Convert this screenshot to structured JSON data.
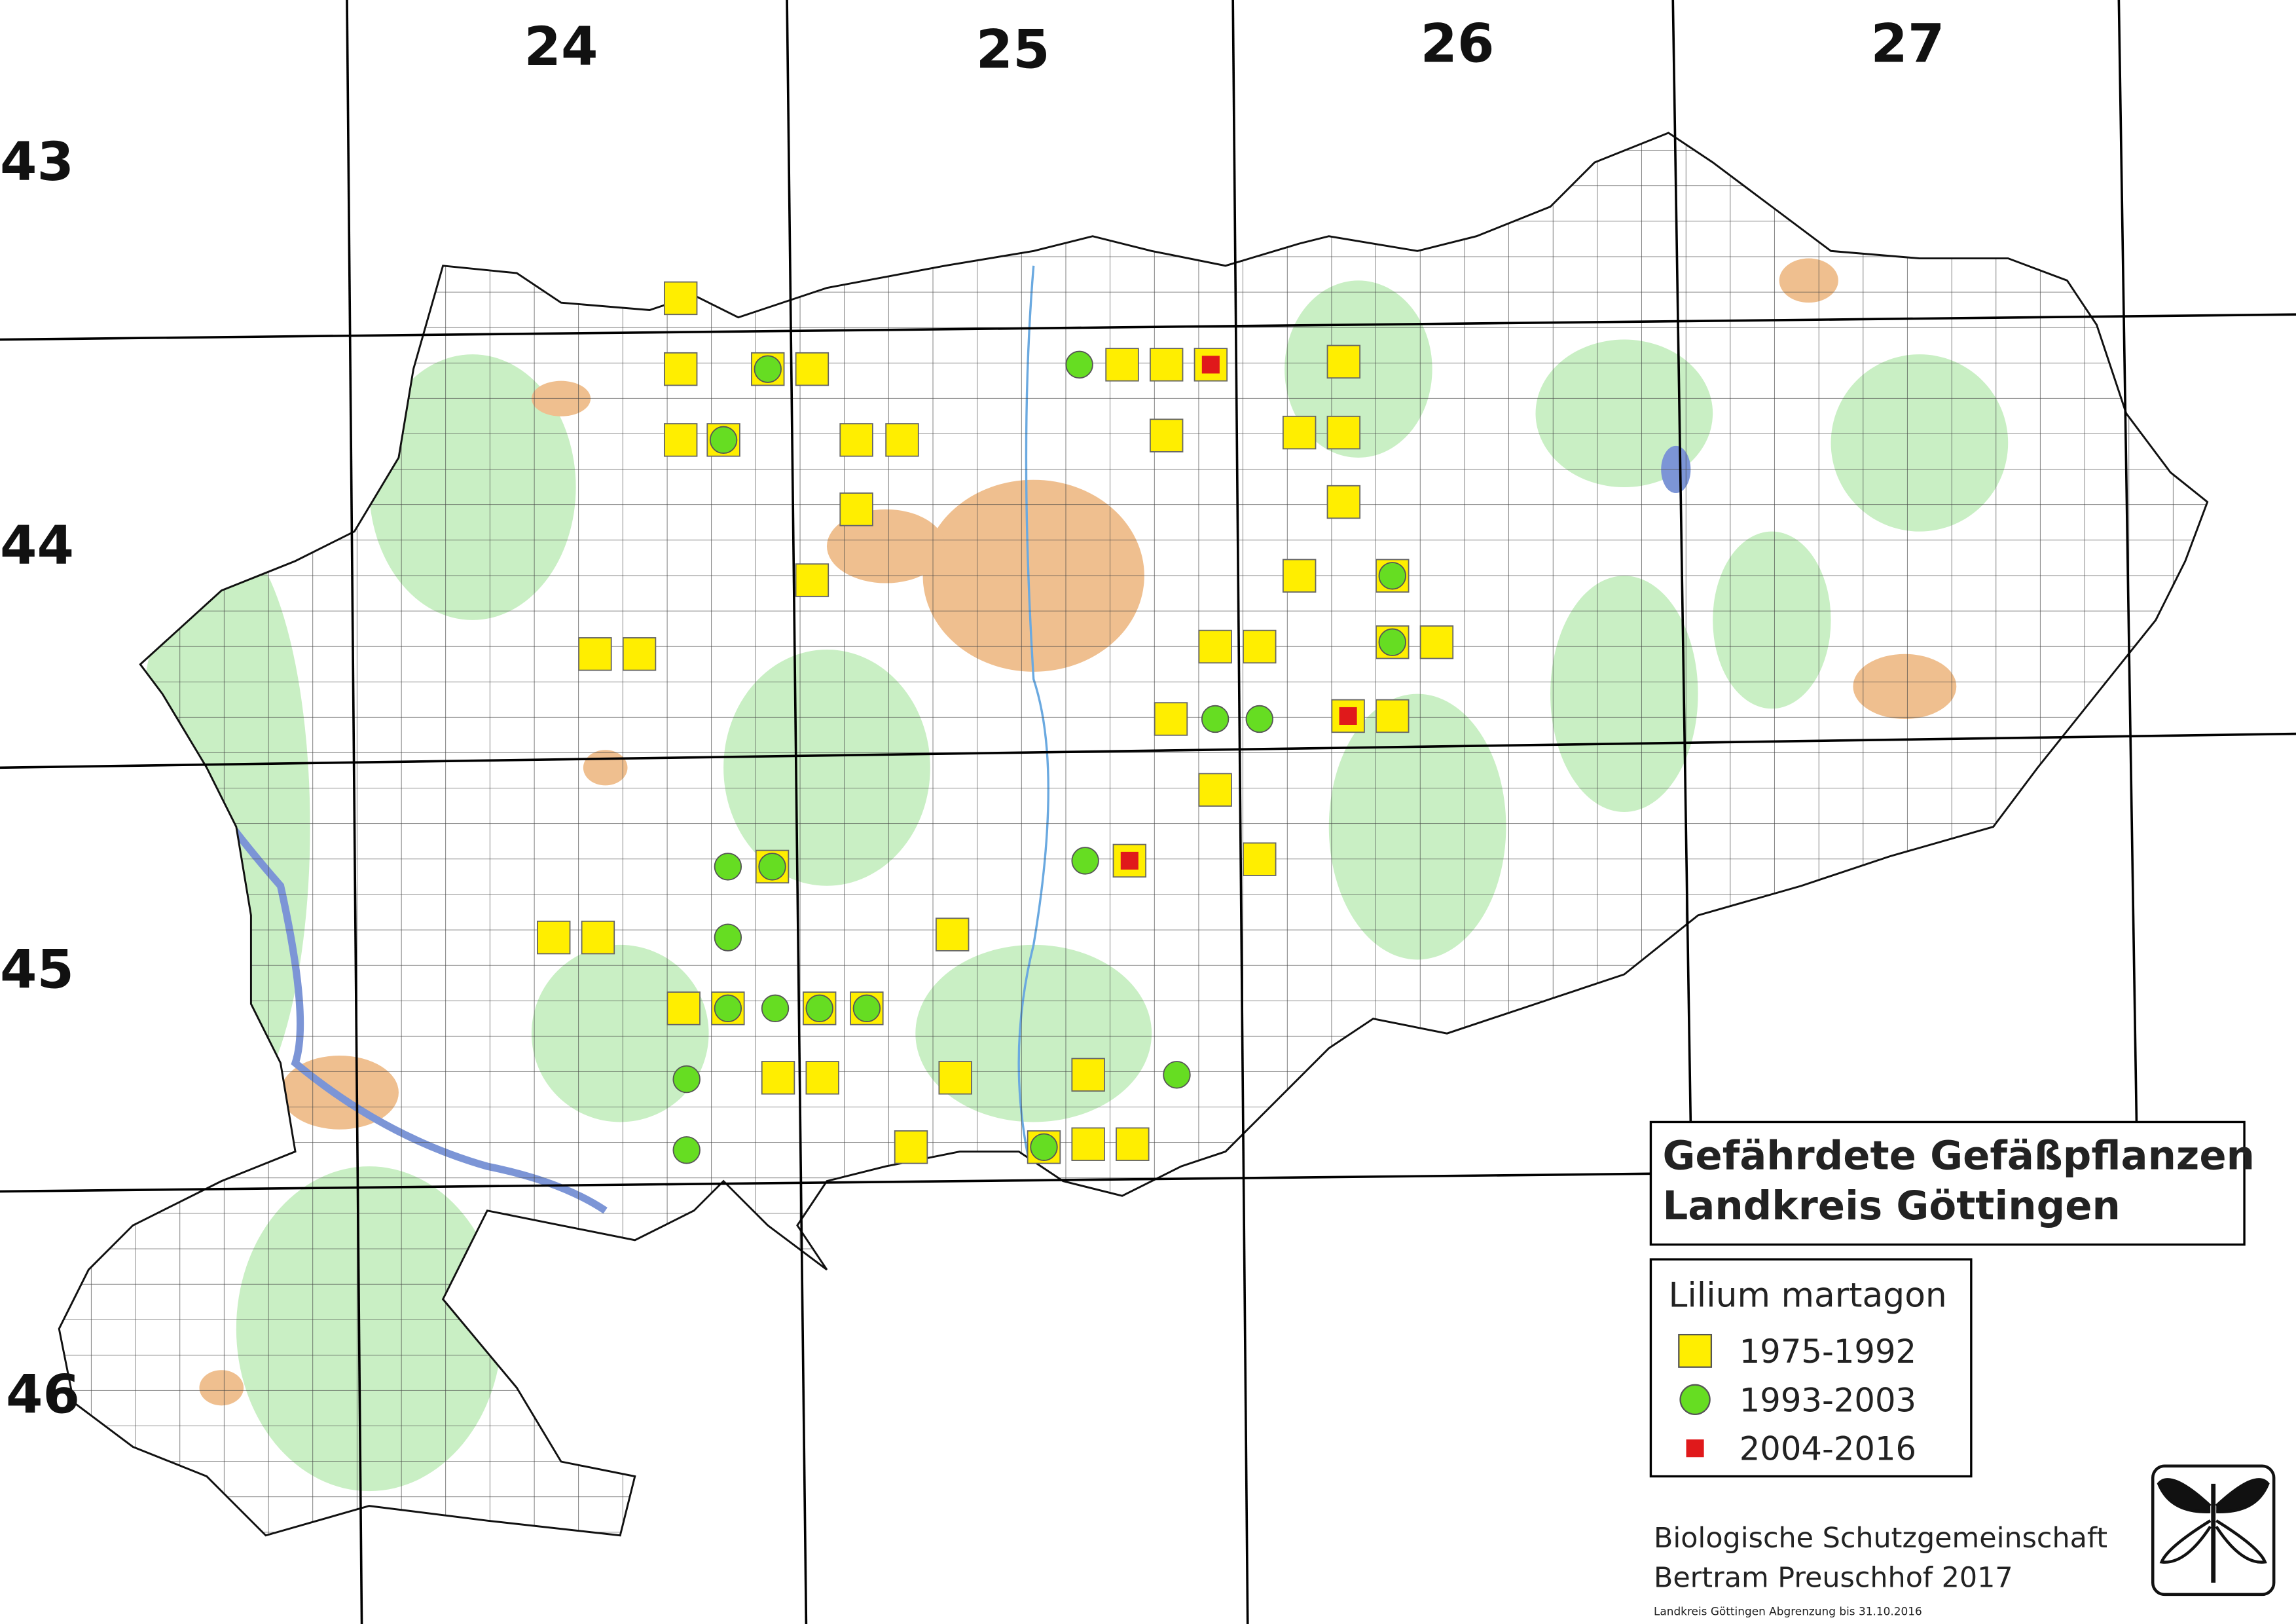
{
  "map": {
    "column_labels": [
      "24",
      "25",
      "26",
      "27"
    ],
    "row_labels": [
      "43",
      "44",
      "45",
      "46"
    ],
    "legend": {
      "title": [
        "Gefährdete Gefäßpflanzen",
        "Landkreis Göttingen"
      ],
      "species": "Lilium martagon",
      "entries": [
        "1975-1992",
        "1993-2003",
        "2004-2016"
      ]
    },
    "credits": [
      "Biologische Schutzgemeinschaft",
      "Bertram Preuschhof 2017",
      "Landkreis Göttingen Abgrenzung bis 31.10.2016"
    ]
  }
}
